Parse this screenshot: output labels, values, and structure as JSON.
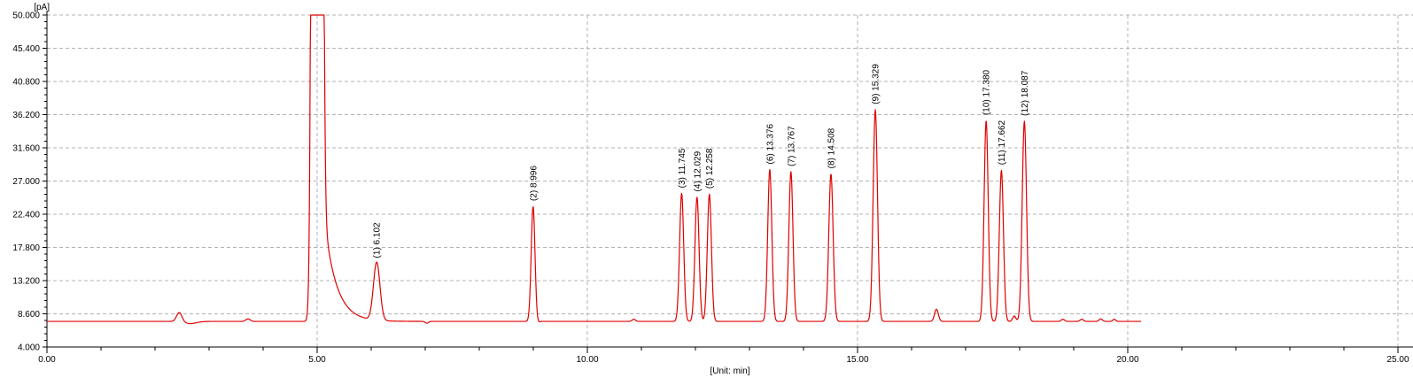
{
  "chart_data": {
    "type": "line",
    "y_axis": {
      "unit_label": "[pA]",
      "min": 4.0,
      "max": 50.0,
      "ticks": [
        50.0,
        45.4,
        40.8,
        36.2,
        31.6,
        27.0,
        22.4,
        17.8,
        13.2,
        8.6,
        4.0
      ],
      "tick_labels": [
        "50.000",
        "45.400",
        "40.800",
        "36.200",
        "31.600",
        "27.000",
        "22.400",
        "17.800",
        "13.200",
        "8.600",
        "4.000"
      ],
      "minor_divisions": 5,
      "grid": true
    },
    "x_axis": {
      "unit_label": "[Unit: min]",
      "min": 0.0,
      "max": 25.28,
      "major_ticks": [
        0,
        5,
        10,
        15,
        20,
        25
      ],
      "tick_labels": [
        "0.00",
        "5.00",
        "10.00",
        "15.00",
        "20.00",
        "25.00"
      ],
      "minor_step": 1,
      "grid": true
    },
    "trace": {
      "color": "#e00000",
      "baseline_pa": 7.55,
      "start_min": 0.0,
      "end_min": 20.25,
      "clip_pa": 50.0,
      "solvent_front": {
        "rt_min": 5.0,
        "amp_pa": 1000,
        "sigma_min": 0.05,
        "tail_amp_pa": 26,
        "tail_tau_min": 0.22,
        "clipped_at_pa": 50.0
      },
      "minor_features": [
        {
          "rt_min": 2.45,
          "amp_pa": 1.3,
          "sigma_min": 0.05
        },
        {
          "rt_min": 2.65,
          "amp_pa": -0.3,
          "sigma_min": 0.12
        },
        {
          "rt_min": 3.72,
          "amp_pa": 0.35,
          "sigma_min": 0.04
        },
        {
          "rt_min": 7.03,
          "amp_pa": -0.25,
          "sigma_min": 0.03
        },
        {
          "rt_min": 9.08,
          "amp_pa": -0.2,
          "sigma_min": 0.03
        },
        {
          "rt_min": 10.86,
          "amp_pa": 0.3,
          "sigma_min": 0.03
        },
        {
          "rt_min": 16.46,
          "amp_pa": 1.7,
          "sigma_min": 0.035
        },
        {
          "rt_min": 17.9,
          "amp_pa": 0.75,
          "sigma_min": 0.03
        },
        {
          "rt_min": 18.8,
          "amp_pa": 0.3,
          "sigma_min": 0.03
        },
        {
          "rt_min": 19.15,
          "amp_pa": 0.3,
          "sigma_min": 0.03
        },
        {
          "rt_min": 19.5,
          "amp_pa": 0.35,
          "sigma_min": 0.03
        },
        {
          "rt_min": 19.75,
          "amp_pa": 0.3,
          "sigma_min": 0.025
        }
      ]
    },
    "peaks": [
      {
        "number": 1,
        "label": "(1) 6.102",
        "rt_min": 6.102,
        "apex_pa": 15.6,
        "sigma_min": 0.06
      },
      {
        "number": 2,
        "label": "(2) 8.996",
        "rt_min": 8.996,
        "apex_pa": 23.5,
        "sigma_min": 0.035
      },
      {
        "number": 3,
        "label": "(3) 11.745",
        "rt_min": 11.745,
        "apex_pa": 25.3,
        "sigma_min": 0.038
      },
      {
        "number": 4,
        "label": "(4) 12.029",
        "rt_min": 12.029,
        "apex_pa": 24.8,
        "sigma_min": 0.038
      },
      {
        "number": 5,
        "label": "(5) 12.258",
        "rt_min": 12.258,
        "apex_pa": 25.2,
        "sigma_min": 0.038
      },
      {
        "number": 6,
        "label": "(6) 13.376",
        "rt_min": 13.376,
        "apex_pa": 28.6,
        "sigma_min": 0.038
      },
      {
        "number": 7,
        "label": "(7) 13.767",
        "rt_min": 13.767,
        "apex_pa": 28.3,
        "sigma_min": 0.038
      },
      {
        "number": 8,
        "label": "(8) 14.508",
        "rt_min": 14.508,
        "apex_pa": 28.0,
        "sigma_min": 0.04
      },
      {
        "number": 9,
        "label": "(9) 15.329",
        "rt_min": 15.329,
        "apex_pa": 36.9,
        "sigma_min": 0.04
      },
      {
        "number": 10,
        "label": "(10) 17.380",
        "rt_min": 17.38,
        "apex_pa": 35.4,
        "sigma_min": 0.038
      },
      {
        "number": 11,
        "label": "(11) 17.662",
        "rt_min": 17.662,
        "apex_pa": 28.5,
        "sigma_min": 0.038
      },
      {
        "number": 12,
        "label": "(12) 18.087",
        "rt_min": 18.087,
        "apex_pa": 35.3,
        "sigma_min": 0.04
      }
    ],
    "style": {
      "grid_color": "#b3b3b3",
      "axis_color": "#000000",
      "label_color": "#000000",
      "background": "#ffffff"
    }
  }
}
